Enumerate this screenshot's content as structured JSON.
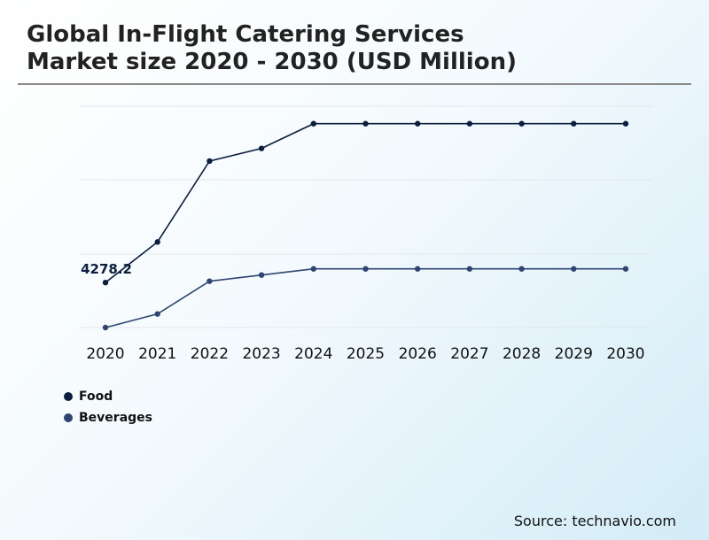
{
  "chart_data": {
    "type": "line",
    "title_line1": "Global In-Flight Catering Services",
    "title_line2": "Market size 2020 - 2030 (USD Million)",
    "categories": [
      "2020",
      "2021",
      "2022",
      "2023",
      "2024",
      "2025",
      "2026",
      "2027",
      "2028",
      "2029",
      "2030"
    ],
    "series": [
      {
        "name": "Food",
        "color": "#0c1e3e",
        "values": [
          4278.2,
          4935,
          6245,
          6450,
          6850,
          6850,
          6850,
          6850,
          6850,
          6850,
          6850
        ]
      },
      {
        "name": "Beverages",
        "color": "#2f4570",
        "values": [
          3550,
          3770,
          4300,
          4400,
          4500,
          4500,
          4500,
          4500,
          4500,
          4500,
          4500
        ]
      }
    ],
    "annotation": {
      "series": "Food",
      "index": 0,
      "text": "4278.2"
    },
    "ylim": [
      3550,
      7620
    ],
    "grid": true,
    "legend_position": "bottom-left",
    "xlabel": "",
    "ylabel": ""
  },
  "source": "Source: technavio.com"
}
